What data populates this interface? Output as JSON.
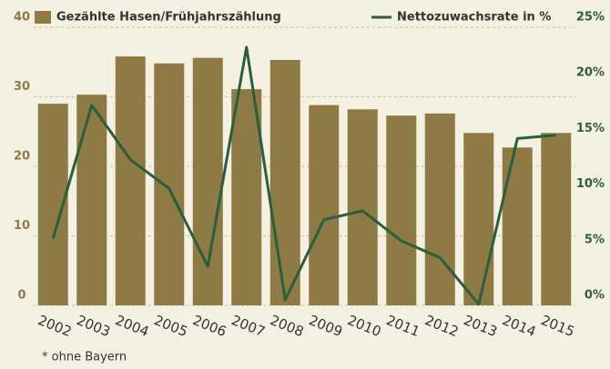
{
  "chart_data": {
    "type": "bar-line",
    "categories": [
      "2002",
      "2003",
      "2004",
      "2005",
      "2006",
      "2007",
      "2008",
      "2009",
      "2010",
      "2011",
      "2012",
      "2013",
      "2014",
      "2015"
    ],
    "series": [
      {
        "name": "Gezählte Hasen/Frühjahrszählung",
        "color": "#8d7a45",
        "values": [
          29.0,
          30.3,
          35.8,
          34.8,
          35.6,
          31.1,
          35.3,
          28.8,
          28.2,
          27.3,
          27.6,
          24.8,
          22.7,
          24.8
        ]
      },
      {
        "name": "Nettozuwachsrate in %",
        "color": "#2b5e3c",
        "axis": "y2",
        "values": [
          6.0,
          18.0,
          13.1,
          10.5,
          3.5,
          23.2,
          0.5,
          7.7,
          8.5,
          5.8,
          4.3,
          0.1,
          15.0,
          15.3
        ]
      }
    ],
    "ylim": [
      0,
      40
    ],
    "yticks": [
      0,
      10,
      20,
      30,
      40
    ],
    "y2lim": [
      0,
      25
    ],
    "y2ticks": [
      {
        "value": 0,
        "label": "0%"
      },
      {
        "value": 5,
        "label": "5%"
      },
      {
        "value": 10,
        "label": "10%"
      },
      {
        "value": 15,
        "label": "15%"
      },
      {
        "value": 20,
        "label": "20%"
      },
      {
        "value": 25,
        "label": "25%"
      }
    ],
    "grid": true,
    "footnote": "* ohne Bayern"
  }
}
